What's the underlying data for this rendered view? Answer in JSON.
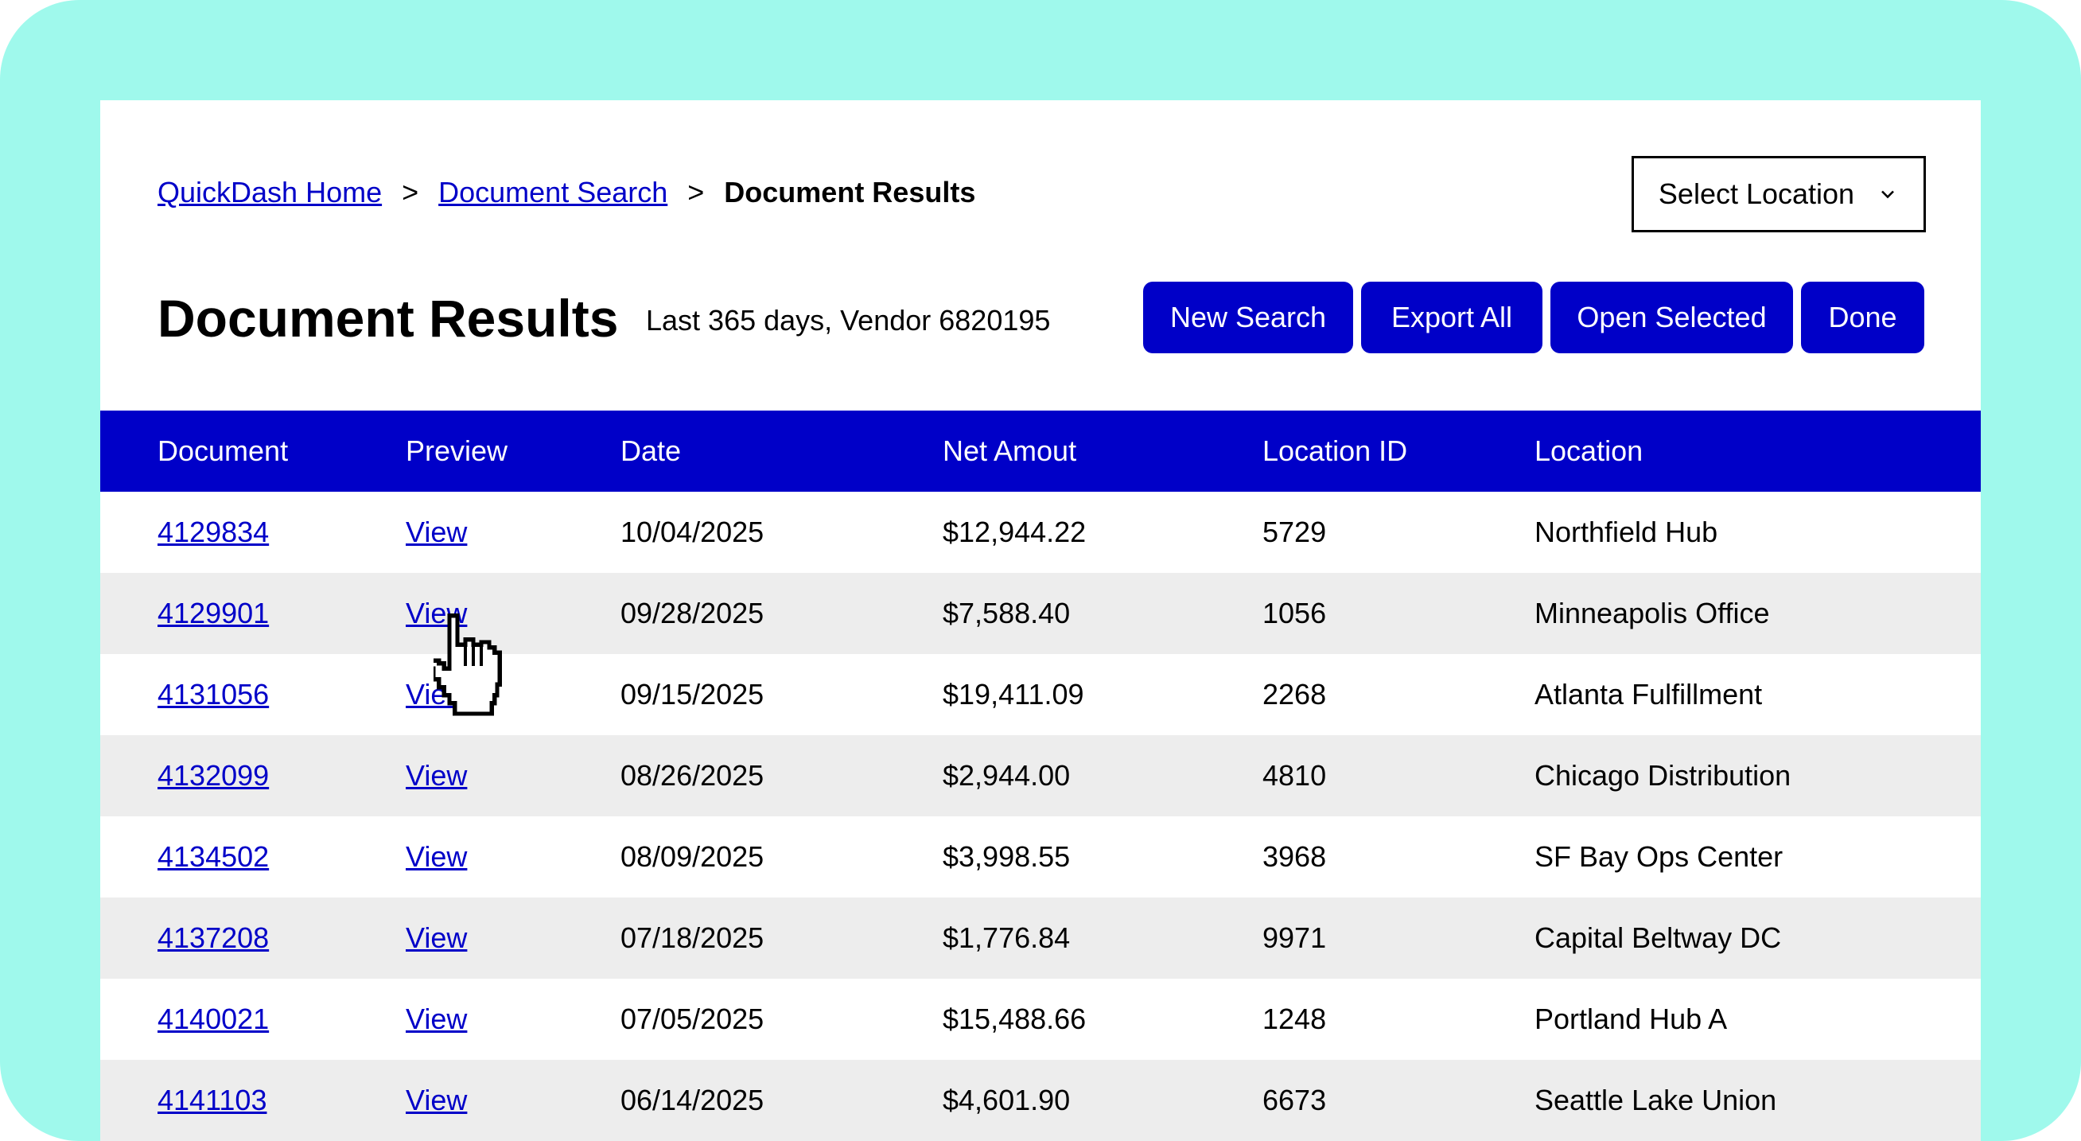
{
  "breadcrumb": {
    "home": "QuickDash Home",
    "search": "Document Search",
    "current": "Document Results",
    "separator": ">"
  },
  "location_select": {
    "label": "Select Location"
  },
  "header": {
    "title": "Document Results",
    "subtitle": "Last 365 days, Vendor 6820195"
  },
  "actions": {
    "new_search": "New Search",
    "export_all": "Export All",
    "open_selected": "Open Selected",
    "done": "Done"
  },
  "table": {
    "columns": [
      "Document",
      "Preview",
      "Date",
      "Net Amout",
      "Location ID",
      "Location"
    ],
    "rows": [
      {
        "document": "4129834",
        "preview": "View",
        "date": "10/04/2025",
        "amount": "$12,944.22",
        "location_id": "5729",
        "location": "Northfield Hub"
      },
      {
        "document": "4129901",
        "preview": "View",
        "date": "09/28/2025",
        "amount": "$7,588.40",
        "location_id": "1056",
        "location": "Minneapolis Office"
      },
      {
        "document": "4131056",
        "preview": "View",
        "date": "09/15/2025",
        "amount": "$19,411.09",
        "location_id": "2268",
        "location": "Atlanta Fulfillment"
      },
      {
        "document": "4132099",
        "preview": "View",
        "date": "08/26/2025",
        "amount": "$2,944.00",
        "location_id": "4810",
        "location": "Chicago Distribution"
      },
      {
        "document": "4134502",
        "preview": "View",
        "date": "08/09/2025",
        "amount": "$3,998.55",
        "location_id": "3968",
        "location": "SF Bay Ops Center"
      },
      {
        "document": "4137208",
        "preview": "View",
        "date": "07/18/2025",
        "amount": "$1,776.84",
        "location_id": "9971",
        "location": "Capital Beltway DC"
      },
      {
        "document": "4140021",
        "preview": "View",
        "date": "07/05/2025",
        "amount": "$15,488.66",
        "location_id": "1248",
        "location": "Portland Hub A"
      },
      {
        "document": "4141103",
        "preview": "View",
        "date": "06/14/2025",
        "amount": "$4,601.90",
        "location_id": "6673",
        "location": "Seattle Lake Union"
      }
    ]
  },
  "colors": {
    "accent": "#0000c8",
    "background": "#9ff9ec",
    "row_alt": "#ededed"
  },
  "icons": {
    "location_chevron": "chevron-down-icon",
    "cursor": "hand-pointer-icon"
  }
}
